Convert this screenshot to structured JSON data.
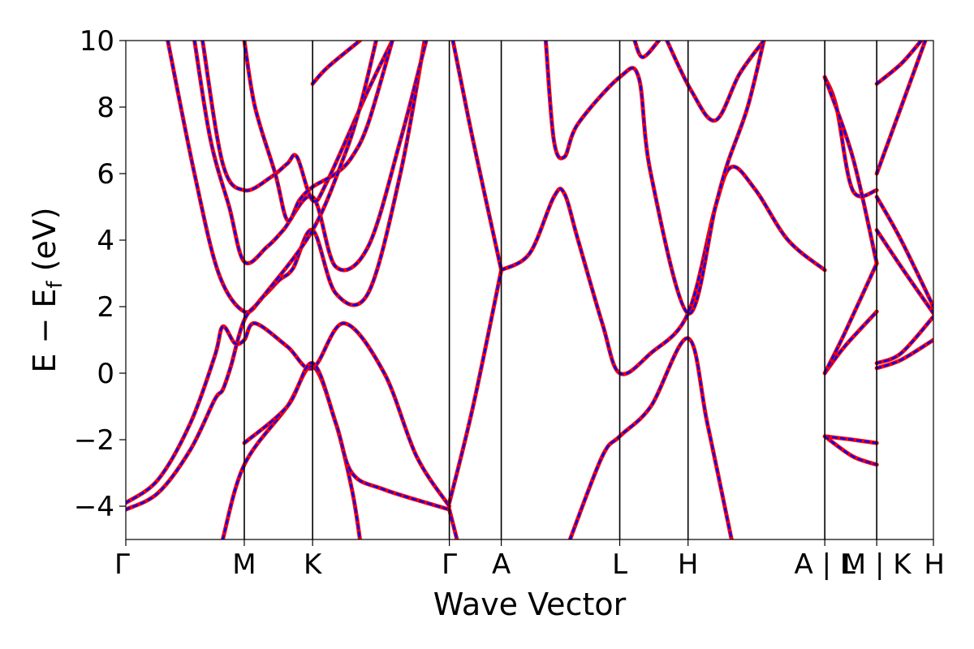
{
  "chart_data": {
    "type": "line",
    "xlabel": "Wave Vector",
    "ylabel_main": "E − E",
    "ylabel_sub": "f",
    "ylabel_unit": " (eV)",
    "xlim": [
      0,
      1
    ],
    "ylim": [
      -5,
      10
    ],
    "yticks": [
      {
        "value": -4,
        "label": "−4"
      },
      {
        "value": -2,
        "label": "−2"
      },
      {
        "value": 0,
        "label": "0"
      },
      {
        "value": 2,
        "label": "2"
      },
      {
        "value": 4,
        "label": "4"
      },
      {
        "value": 6,
        "label": "6"
      },
      {
        "value": 8,
        "label": "8"
      },
      {
        "value": 10,
        "label": "10"
      }
    ],
    "kpoints": [
      {
        "label": "Γ",
        "x": 0.0
      },
      {
        "label": "M",
        "x": 0.1467
      },
      {
        "label": "K",
        "x": 0.2313
      },
      {
        "label": "Γ",
        "x": 0.4006
      },
      {
        "label": "A",
        "x": 0.4649
      },
      {
        "label": "L",
        "x": 0.6116
      },
      {
        "label": "H",
        "x": 0.6962
      },
      {
        "label": "A | L",
        "x": 0.8655
      },
      {
        "label": "M | K",
        "x": 0.9298
      },
      {
        "label": "H",
        "x": 1.0
      }
    ],
    "vlines": [
      0.1467,
      0.2313,
      0.4006,
      0.4649,
      0.6116,
      0.6962,
      0.8655,
      0.9298
    ],
    "series": [
      {
        "color": "#ff0000",
        "style": "solid"
      },
      {
        "color": "#0000ff",
        "style": "dashed"
      }
    ],
    "bands": [
      {
        "segment": "Gamma-M-K-Gamma",
        "points": [
          [
            0.052,
            10
          ],
          [
            0.085,
            6
          ],
          [
            0.115,
            3
          ],
          [
            0.1467,
            1.85
          ],
          [
            0.17,
            2.3
          ],
          [
            0.19,
            2.8
          ],
          [
            0.207,
            3.15
          ],
          [
            0.2313,
            4.3
          ],
          [
            0.26,
            2.4
          ],
          [
            0.3,
            2.4
          ],
          [
            0.34,
            6
          ],
          [
            0.37,
            10
          ]
        ]
      },
      {
        "segment": "Gamma-M-K-Gamma",
        "points": [
          [
            0.085,
            10
          ],
          [
            0.105,
            7
          ],
          [
            0.128,
            5
          ],
          [
            0.1467,
            3.35
          ],
          [
            0.175,
            3.8
          ],
          [
            0.195,
            4.3
          ],
          [
            0.2313,
            5.3
          ],
          [
            0.26,
            3.2
          ],
          [
            0.3,
            3.8
          ],
          [
            0.34,
            7
          ],
          [
            0.372,
            10
          ]
        ]
      },
      {
        "segment": "Gamma-M-K-Gamma",
        "points": [
          [
            0.095,
            10
          ],
          [
            0.12,
            6.3
          ],
          [
            0.1467,
            5.5
          ],
          [
            0.18,
            5.9
          ],
          [
            0.2,
            6.3
          ],
          [
            0.212,
            6.5
          ],
          [
            0.2313,
            5.2
          ],
          [
            0.25,
            5.8
          ],
          [
            0.3,
            8.5
          ],
          [
            0.33,
            10
          ]
        ]
      },
      {
        "segment": "Gamma-M-K-Gamma",
        "points": [
          [
            0.1467,
            10
          ],
          [
            0.16,
            8
          ],
          [
            0.185,
            6
          ],
          [
            0.2,
            4.6
          ],
          [
            0.215,
            5.2
          ],
          [
            0.2313,
            5.6
          ],
          [
            0.26,
            6
          ],
          [
            0.28,
            6.5
          ],
          [
            0.3,
            7.5
          ],
          [
            0.33,
            10
          ]
        ]
      },
      {
        "segment": "Gamma-M-K-Gamma",
        "points": [
          [
            0.0,
            -4.1
          ],
          [
            0.04,
            -3.6
          ],
          [
            0.08,
            -2.3
          ],
          [
            0.11,
            -0.8
          ],
          [
            0.12,
            -0.5
          ],
          [
            0.13,
            0.2
          ],
          [
            0.1467,
            1.6
          ],
          [
            0.17,
            2.3
          ],
          [
            0.2313,
            4.3
          ],
          [
            0.27,
            6.5
          ],
          [
            0.29,
            8
          ],
          [
            0.31,
            10
          ]
        ]
      },
      {
        "segment": "Gamma-M-K-Gamma",
        "points": [
          [
            0.0,
            -3.9
          ],
          [
            0.04,
            -3.2
          ],
          [
            0.08,
            -1.5
          ],
          [
            0.11,
            0.5
          ],
          [
            0.12,
            1.4
          ],
          [
            0.135,
            0.9
          ],
          [
            0.1467,
            1.0
          ],
          [
            0.16,
            1.5
          ],
          [
            0.2,
            0.8
          ],
          [
            0.2313,
            0.15
          ],
          [
            0.27,
            1.5
          ],
          [
            0.32,
            0
          ],
          [
            0.36,
            -2.5
          ],
          [
            0.4006,
            -4.0
          ]
        ]
      },
      {
        "segment": "Gamma-M-K-Gamma",
        "points": [
          [
            0.12,
            -5
          ],
          [
            0.1467,
            -2.75
          ],
          [
            0.2,
            -1.0
          ],
          [
            0.2313,
            0.2
          ],
          [
            0.26,
            -1.5
          ],
          [
            0.28,
            -3.5
          ],
          [
            0.29,
            -5
          ]
        ]
      },
      {
        "segment": "Gamma-M-K-Gamma",
        "points": [
          [
            0.1467,
            -2.1
          ],
          [
            0.2,
            -1.0
          ],
          [
            0.2313,
            0.3
          ],
          [
            0.26,
            -1.5
          ],
          [
            0.28,
            -3.0
          ],
          [
            0.32,
            -3.5
          ],
          [
            0.4006,
            -4.1
          ]
        ]
      },
      {
        "segment": "Gamma-M-K-Gamma",
        "points": [
          [
            0.2313,
            8.7
          ],
          [
            0.25,
            9.2
          ],
          [
            0.29,
            10
          ]
        ]
      },
      {
        "segment": "Gamma-A",
        "points": [
          [
            0.4006,
            -4.1
          ],
          [
            0.41,
            -5
          ]
        ]
      },
      {
        "segment": "Gamma-A",
        "points": [
          [
            0.405,
            10
          ],
          [
            0.43,
            7
          ],
          [
            0.4649,
            3.1
          ]
        ]
      },
      {
        "segment": "Gamma-A",
        "points": [
          [
            0.4006,
            -3.9
          ],
          [
            0.43,
            -1
          ],
          [
            0.4649,
            3.1
          ]
        ]
      },
      {
        "segment": "A-L-H-A",
        "points": [
          [
            0.4649,
            3.1
          ],
          [
            0.5,
            3.6
          ],
          [
            0.53,
            5.3
          ],
          [
            0.543,
            5.4
          ],
          [
            0.56,
            4
          ],
          [
            0.59,
            1.5
          ],
          [
            0.6116,
            0.0
          ],
          [
            0.65,
            0.6
          ],
          [
            0.6962,
            1.8
          ],
          [
            0.73,
            5
          ],
          [
            0.75,
            6.2
          ],
          [
            0.78,
            5.5
          ],
          [
            0.82,
            4
          ],
          [
            0.8655,
            3.1
          ]
        ]
      },
      {
        "segment": "A-L-H-A",
        "points": [
          [
            0.52,
            10
          ],
          [
            0.53,
            7
          ],
          [
            0.543,
            6.5
          ],
          [
            0.56,
            7.5
          ],
          [
            0.6116,
            8.9
          ],
          [
            0.635,
            8.9
          ],
          [
            0.65,
            6
          ],
          [
            0.6962,
            1.8
          ],
          [
            0.73,
            5
          ],
          [
            0.745,
            6.3
          ],
          [
            0.77,
            8
          ],
          [
            0.79,
            10
          ]
        ]
      },
      {
        "segment": "A-L-H-A",
        "points": [
          [
            0.55,
            -5
          ],
          [
            0.59,
            -2.5
          ],
          [
            0.6116,
            -1.9
          ],
          [
            0.65,
            -1
          ],
          [
            0.6962,
            1.05
          ],
          [
            0.72,
            -1.5
          ],
          [
            0.75,
            -5
          ]
        ]
      },
      {
        "segment": "A-L-H-A",
        "points": [
          [
            0.63,
            10
          ],
          [
            0.64,
            9.5
          ],
          [
            0.66,
            10
          ]
        ]
      },
      {
        "segment": "A-L-H-A",
        "points": [
          [
            0.67,
            10
          ],
          [
            0.7,
            8.5
          ],
          [
            0.73,
            7.6
          ],
          [
            0.76,
            9
          ],
          [
            0.79,
            10
          ]
        ]
      },
      {
        "segment": "L-M",
        "points": [
          [
            0.8655,
            8.9
          ],
          [
            0.88,
            8
          ],
          [
            0.9,
            5.5
          ],
          [
            0.9298,
            5.5
          ]
        ]
      },
      {
        "segment": "L-M",
        "points": [
          [
            0.8655,
            8.9
          ],
          [
            0.9,
            6.5
          ],
          [
            0.9298,
            3.3
          ]
        ]
      },
      {
        "segment": "L-M",
        "points": [
          [
            0.8655,
            0.0
          ],
          [
            0.89,
            0.8
          ],
          [
            0.9298,
            1.85
          ]
        ]
      },
      {
        "segment": "L-M",
        "points": [
          [
            0.8655,
            0.0
          ],
          [
            0.89,
            1.2
          ],
          [
            0.9298,
            3.3
          ]
        ]
      },
      {
        "segment": "L-M",
        "points": [
          [
            0.8655,
            -1.9
          ],
          [
            0.9,
            -2.0
          ],
          [
            0.9298,
            -2.1
          ]
        ]
      },
      {
        "segment": "L-M",
        "points": [
          [
            0.8655,
            -1.9
          ],
          [
            0.9,
            -2.5
          ],
          [
            0.9298,
            -2.75
          ]
        ]
      },
      {
        "segment": "K-H",
        "points": [
          [
            0.9298,
            8.7
          ],
          [
            0.96,
            9.3
          ],
          [
            0.985,
            10
          ]
        ]
      },
      {
        "segment": "K-H",
        "points": [
          [
            0.9298,
            6.0
          ],
          [
            0.96,
            8
          ],
          [
            0.99,
            10
          ]
        ]
      },
      {
        "segment": "K-H",
        "points": [
          [
            0.9298,
            5.3
          ],
          [
            0.96,
            4
          ],
          [
            1.0,
            2.0
          ]
        ]
      },
      {
        "segment": "K-H",
        "points": [
          [
            0.9298,
            4.3
          ],
          [
            0.96,
            3.2
          ],
          [
            1.0,
            1.8
          ]
        ]
      },
      {
        "segment": "K-H",
        "points": [
          [
            0.9298,
            0.3
          ],
          [
            0.96,
            0.6
          ],
          [
            1.0,
            1.7
          ]
        ]
      },
      {
        "segment": "K-H",
        "points": [
          [
            0.9298,
            0.15
          ],
          [
            0.96,
            0.4
          ],
          [
            1.0,
            1.0
          ]
        ]
      }
    ]
  }
}
